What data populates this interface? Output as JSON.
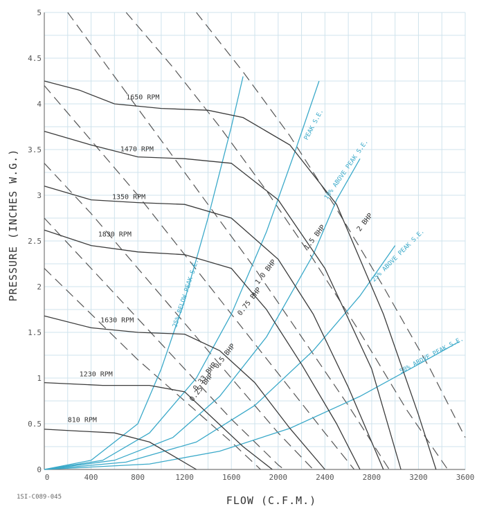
{
  "drawing_number": "1SI-C089-045",
  "chart_data": {
    "type": "line",
    "xlabel": "FLOW (C.F.M.)",
    "ylabel": "PRESSURE (INCHES W.G.)",
    "xlim": [
      0,
      3600
    ],
    "ylim": [
      0,
      5
    ],
    "x_ticks": [
      0,
      400,
      800,
      1200,
      1600,
      2000,
      2400,
      2800,
      3200,
      3600
    ],
    "y_ticks": [
      0,
      0.5,
      1,
      1.5,
      2,
      2.5,
      3,
      3.5,
      4,
      4.5,
      5
    ],
    "x_tick_labels": [
      "0",
      "400",
      "800",
      "1200",
      "1600",
      "2000",
      "2400",
      "2800",
      "3200",
      "3600"
    ],
    "y_tick_labels": [
      "0",
      "0.5",
      "1",
      "1.5",
      "2",
      "2.5",
      "3",
      "3.5",
      "4",
      "4.5",
      "5"
    ],
    "grid": true,
    "rpm_curves": [
      {
        "name": "810 RPM",
        "label_at": [
          200,
          0.52
        ],
        "points": [
          [
            0,
            0.44
          ],
          [
            300,
            0.42
          ],
          [
            600,
            0.4
          ],
          [
            900,
            0.3
          ],
          [
            1100,
            0.15
          ],
          [
            1300,
            0
          ]
        ]
      },
      {
        "name": "1230 RPM",
        "label_at": [
          300,
          1.02
        ],
        "points": [
          [
            0,
            0.95
          ],
          [
            500,
            0.92
          ],
          [
            900,
            0.92
          ],
          [
            1200,
            0.85
          ],
          [
            1450,
            0.55
          ],
          [
            1700,
            0.25
          ],
          [
            1950,
            0
          ]
        ]
      },
      {
        "name": "1630 RPM",
        "label_at": [
          480,
          1.61
        ],
        "points": [
          [
            0,
            1.68
          ],
          [
            400,
            1.55
          ],
          [
            800,
            1.5
          ],
          [
            1200,
            1.48
          ],
          [
            1500,
            1.3
          ],
          [
            1800,
            0.95
          ],
          [
            2100,
            0.45
          ],
          [
            2400,
            0
          ]
        ]
      },
      {
        "name": "1830 RPM",
        "label_at": [
          460,
          2.55
        ],
        "points": [
          [
            0,
            2.62
          ],
          [
            400,
            2.45
          ],
          [
            800,
            2.38
          ],
          [
            1200,
            2.35
          ],
          [
            1600,
            2.2
          ],
          [
            1900,
            1.75
          ],
          [
            2200,
            1.15
          ],
          [
            2500,
            0.5
          ],
          [
            2700,
            0
          ]
        ]
      },
      {
        "name": "1350 RPM",
        "label_at": [
          580,
          2.96
        ],
        "points": [
          [
            0,
            3.1
          ],
          [
            400,
            2.95
          ],
          [
            800,
            2.92
          ],
          [
            1200,
            2.9
          ],
          [
            1600,
            2.75
          ],
          [
            2000,
            2.3
          ],
          [
            2300,
            1.7
          ],
          [
            2600,
            0.9
          ],
          [
            2900,
            0
          ]
        ]
      },
      {
        "name": "1470 RPM",
        "label_at": [
          650,
          3.48
        ],
        "points": [
          [
            0,
            3.7
          ],
          [
            400,
            3.55
          ],
          [
            800,
            3.42
          ],
          [
            1200,
            3.4
          ],
          [
            1600,
            3.35
          ],
          [
            2000,
            2.95
          ],
          [
            2400,
            2.2
          ],
          [
            2800,
            1.1
          ],
          [
            3050,
            0
          ]
        ]
      },
      {
        "name": "1650 RPM",
        "label_at": [
          700,
          4.05
        ],
        "points": [
          [
            0,
            4.25
          ],
          [
            300,
            4.15
          ],
          [
            600,
            4.0
          ],
          [
            1000,
            3.95
          ],
          [
            1400,
            3.93
          ],
          [
            1700,
            3.85
          ],
          [
            2100,
            3.55
          ],
          [
            2500,
            2.9
          ],
          [
            2900,
            1.7
          ],
          [
            3200,
            0.6
          ],
          [
            3350,
            0
          ]
        ]
      }
    ],
    "bhp_lines": [
      {
        "name": "0.25 BHP",
        "label_at": [
          1270,
          0.74
        ],
        "points": [
          [
            0,
            2.2
          ],
          [
            400,
            1.7
          ],
          [
            800,
            1.2
          ],
          [
            1200,
            0.75
          ],
          [
            1600,
            0.3
          ],
          [
            1850,
            0
          ]
        ]
      },
      {
        "name": "0.33 BHP",
        "label_at": [
          1300,
          0.86
        ],
        "points": [
          [
            0,
            2.75
          ],
          [
            400,
            2.2
          ],
          [
            800,
            1.65
          ],
          [
            1200,
            1.1
          ],
          [
            1600,
            0.55
          ],
          [
            2000,
            0.05
          ],
          [
            2050,
            0
          ]
        ]
      },
      {
        "name": "0.5 BHP",
        "label_at": [
          1480,
          1.1
        ],
        "points": [
          [
            0,
            3.35
          ],
          [
            400,
            2.8
          ],
          [
            800,
            2.2
          ],
          [
            1200,
            1.6
          ],
          [
            1600,
            1.0
          ],
          [
            2000,
            0.4
          ],
          [
            2300,
            0
          ]
        ]
      },
      {
        "name": "0.75 BHP",
        "label_at": [
          1680,
          1.68
        ],
        "points": [
          [
            0,
            4.2
          ],
          [
            400,
            3.6
          ],
          [
            800,
            3.0
          ],
          [
            1200,
            2.35
          ],
          [
            1600,
            1.7
          ],
          [
            2000,
            1.05
          ],
          [
            2400,
            0.4
          ],
          [
            2650,
            0
          ]
        ]
      },
      {
        "name": "1.0 BHP",
        "label_at": [
          1830,
          2.02
        ],
        "points": [
          [
            200,
            5.0
          ],
          [
            600,
            4.3
          ],
          [
            1000,
            3.6
          ],
          [
            1400,
            2.9
          ],
          [
            1800,
            2.2
          ],
          [
            2200,
            1.45
          ],
          [
            2600,
            0.7
          ],
          [
            2950,
            0
          ]
        ]
      },
      {
        "name": "1.5 BHP",
        "label_at": [
          2250,
          2.4
        ],
        "points": [
          [
            700,
            5.0
          ],
          [
            1100,
            4.4
          ],
          [
            1500,
            3.75
          ],
          [
            1900,
            3.05
          ],
          [
            2300,
            2.3
          ],
          [
            2700,
            1.5
          ],
          [
            3100,
            0.65
          ],
          [
            3450,
            0
          ]
        ]
      },
      {
        "name": "2 BHP",
        "label_at": [
          2700,
          2.6
        ],
        "points": [
          [
            1300,
            5.0
          ],
          [
            1700,
            4.35
          ],
          [
            2100,
            3.65
          ],
          [
            2500,
            2.85
          ],
          [
            2900,
            2.0
          ],
          [
            3300,
            1.1
          ],
          [
            3600,
            0.35
          ]
        ]
      }
    ],
    "efficiency_curves": [
      {
        "name": "25% BELOW PEAK S.E.",
        "label_at": [
          1130,
          1.55
        ],
        "points": [
          [
            0,
            0
          ],
          [
            400,
            0.1
          ],
          [
            800,
            0.5
          ],
          [
            1000,
            1.1
          ],
          [
            1200,
            1.85
          ],
          [
            1400,
            2.75
          ],
          [
            1600,
            3.75
          ],
          [
            1700,
            4.3
          ]
        ]
      },
      {
        "name": "PEAK S.E.",
        "label_at": [
          2250,
          3.6
        ],
        "points": [
          [
            0,
            0
          ],
          [
            500,
            0.1
          ],
          [
            900,
            0.4
          ],
          [
            1300,
            1.0
          ],
          [
            1600,
            1.7
          ],
          [
            1900,
            2.6
          ],
          [
            2150,
            3.5
          ],
          [
            2350,
            4.25
          ]
        ]
      },
      {
        "name": "10% ABOVE PEAK S.E.",
        "label_at": [
          2420,
          2.95
        ],
        "points": [
          [
            0,
            0
          ],
          [
            600,
            0.1
          ],
          [
            1100,
            0.35
          ],
          [
            1500,
            0.8
          ],
          [
            1900,
            1.45
          ],
          [
            2300,
            2.35
          ],
          [
            2500,
            2.95
          ],
          [
            2700,
            3.4
          ]
        ]
      },
      {
        "name": "25% ABOVE PEAK S.E.",
        "label_at": [
          2820,
          2.05
        ],
        "points": [
          [
            0,
            0
          ],
          [
            700,
            0.08
          ],
          [
            1300,
            0.3
          ],
          [
            1800,
            0.7
          ],
          [
            2300,
            1.3
          ],
          [
            2700,
            1.9
          ],
          [
            3000,
            2.45
          ]
        ]
      },
      {
        "name": "50% ABOVE PEAK S.E.",
        "label_at": [
          3050,
          1.05
        ],
        "points": [
          [
            0,
            0
          ],
          [
            900,
            0.06
          ],
          [
            1500,
            0.2
          ],
          [
            2100,
            0.45
          ],
          [
            2700,
            0.8
          ],
          [
            3200,
            1.15
          ],
          [
            3550,
            1.4
          ]
        ]
      }
    ],
    "colors": {
      "grid": "#cfe3ec",
      "rpm_curve": "#3b3b3b",
      "bhp_line": "#555555",
      "efficiency_curve": "#3aa9c9"
    }
  }
}
